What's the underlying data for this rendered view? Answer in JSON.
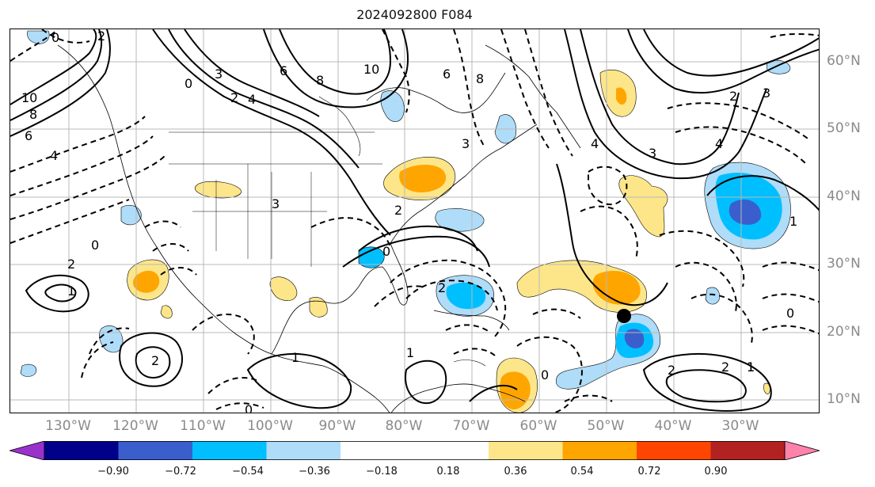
{
  "title": "2024092800 F084",
  "lon_labels": [
    "130°W",
    "120°W",
    "110°W",
    "100°W",
    "90°W",
    "80°W",
    "70°W",
    "60°W",
    "50°W",
    "40°W",
    "30°W"
  ],
  "lat_labels": [
    "60°N",
    "50°N",
    "40°N",
    "30°N",
    "20°N",
    "10°N"
  ],
  "contour_labels": [
    "2",
    "0",
    "10",
    "8",
    "6",
    "4",
    "3",
    "2",
    "0",
    "6",
    "8",
    "10",
    "2",
    "1",
    "0",
    "2",
    "3",
    "2",
    "1",
    "0",
    "2",
    "1",
    "0",
    "3",
    "4",
    "3",
    "2",
    "1",
    "0",
    "4",
    "3",
    "2",
    "1",
    "0",
    "6",
    "8",
    "4",
    "2",
    "1"
  ],
  "storm_marker": "storm-center-dot",
  "colorbar": {
    "ticks": [
      "−0.90",
      "−0.72",
      "−0.54",
      "−0.36",
      "−0.18",
      "0.18",
      "0.36",
      "0.54",
      "0.72",
      "0.90"
    ],
    "colors": [
      "#9932cc",
      "#00008b",
      "#3a5fcd",
      "#00bfff",
      "#afdcf8",
      "#ffffff",
      "#fde68a",
      "#ffa500",
      "#ff4500",
      "#b22222",
      "#ff82ab"
    ]
  }
}
